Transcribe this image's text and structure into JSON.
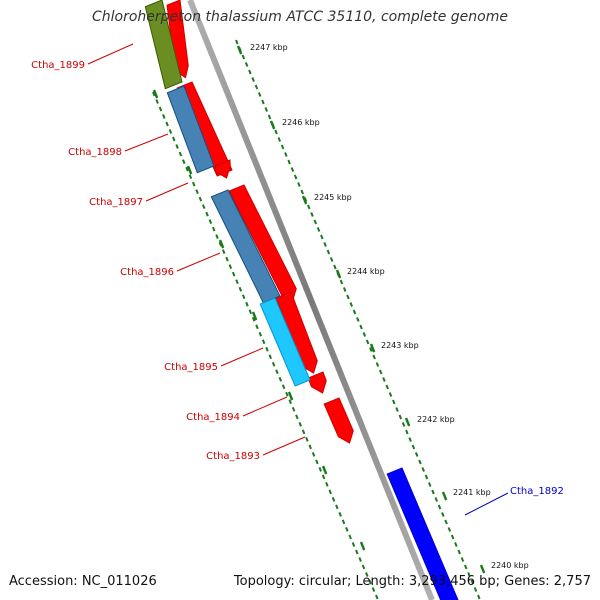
{
  "title": "Chloroherpeton thalassium ATCC 35110, complete genome",
  "footer": {
    "accession": "Accession: NC_011026",
    "summary": "Topology: circular; Length: 3,293,456 bp; Genes: 2,757"
  },
  "colors": {
    "backbone": "#888888",
    "tick": "#1a7a1a",
    "label_default": "#cc0000",
    "label_highlight": "#0000cc",
    "forward_gene": "#ff0000",
    "reverse_gene_olive": "#6b8e23",
    "reverse_gene_steel": "#4682b4",
    "reverse_gene_cyan": "#1ec8ff",
    "forward_gene_blue": "#0000ff"
  },
  "ruler": {
    "tick_labels": [
      "2247 kbp",
      "2246 kbp",
      "2245 kbp",
      "2244 kbp",
      "2243 kbp",
      "2242 kbp",
      "2241 kbp",
      "2240 kbp"
    ]
  },
  "genes": [
    {
      "label": "Ctha_1899",
      "color": "#cc0000"
    },
    {
      "label": "Ctha_1898",
      "color": "#cc0000"
    },
    {
      "label": "Ctha_1897",
      "color": "#cc0000"
    },
    {
      "label": "Ctha_1896",
      "color": "#cc0000"
    },
    {
      "label": "Ctha_1895",
      "color": "#cc0000"
    },
    {
      "label": "Ctha_1894",
      "color": "#cc0000"
    },
    {
      "label": "Ctha_1893",
      "color": "#cc0000"
    },
    {
      "label": "Ctha_1892",
      "color": "#0000cc"
    }
  ]
}
